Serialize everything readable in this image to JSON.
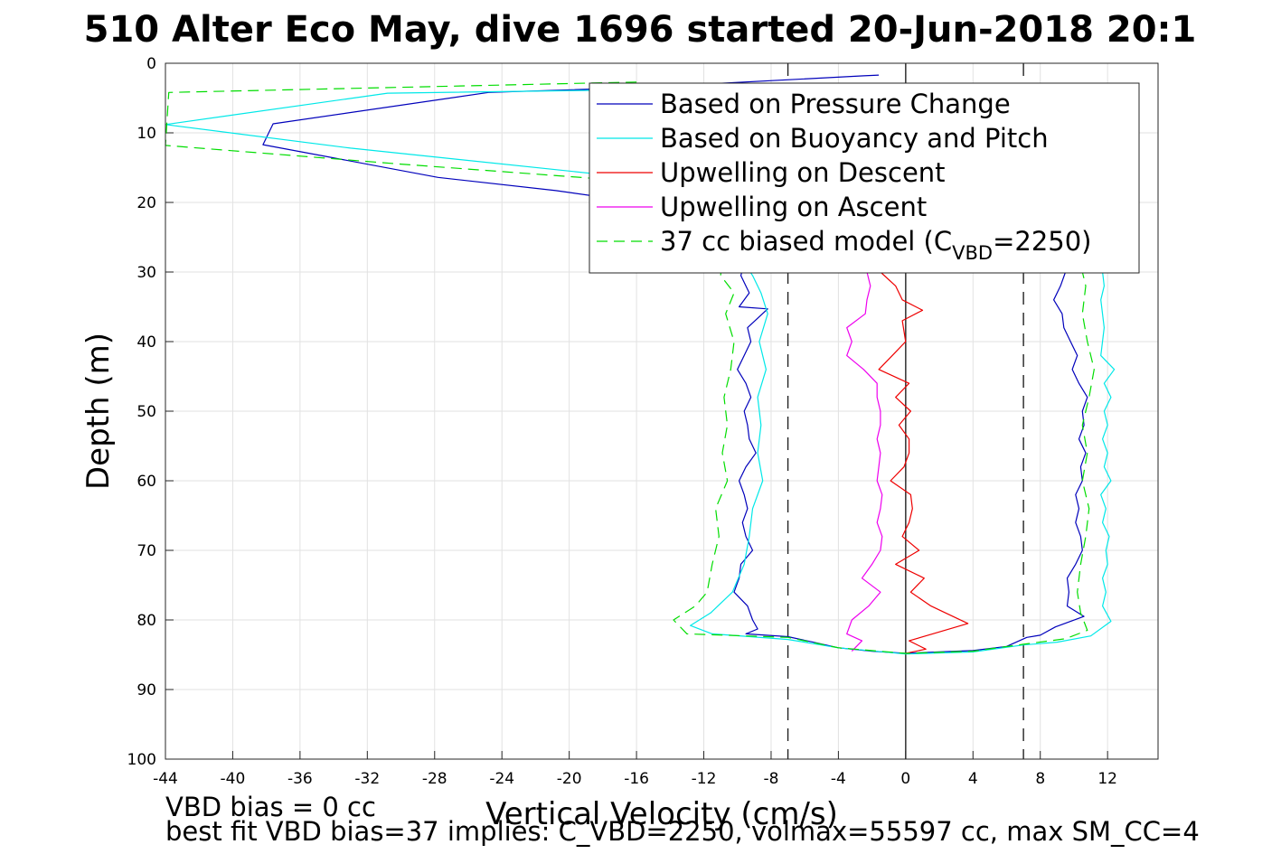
{
  "figure": {
    "title": "510 Alter Eco May, dive 1696 started 20-Jun-2018 20:1",
    "footer_line1": "VBD bias = 0 cc",
    "footer_line2": "best fit VBD bias=37 implies: C_VBD=2250, volmax=55597 cc, max SM_CC=4"
  },
  "chart_data": {
    "type": "line",
    "xlabel": "Vertical Velocity (cm/s)",
    "ylabel": "Depth (m)",
    "xlim": [
      -44,
      15
    ],
    "ylim": [
      0,
      100
    ],
    "y_reversed": true,
    "xticks": [
      -44,
      -40,
      -36,
      -32,
      -28,
      -24,
      -20,
      -16,
      -12,
      -8,
      -4,
      0,
      4,
      8,
      12
    ],
    "yticks": [
      0,
      10,
      20,
      30,
      40,
      50,
      60,
      70,
      80,
      90,
      100
    ],
    "grid": true,
    "legend_position": "top-right",
    "legend": [
      {
        "label": "Based on Pressure Change",
        "color": "#0000bb",
        "dash": false
      },
      {
        "label": "Based on Buoyancy and Pitch",
        "color": "#00e8e8",
        "dash": false
      },
      {
        "label": "Upwelling on Descent",
        "color": "#ee0000",
        "dash": false
      },
      {
        "label": "Upwelling on Ascent",
        "color": "#ee00ee",
        "dash": false
      },
      {
        "label": "37 cc biased model (C",
        "sub": "VBD",
        "suffix": "=2250)",
        "color": "#00dd00",
        "dash": true
      }
    ],
    "reference_lines": [
      {
        "x": 0,
        "style": "solid"
      },
      {
        "x": -7,
        "style": "dashed"
      },
      {
        "x": 7,
        "style": "dashed"
      }
    ],
    "series": [
      {
        "legend_index": 0,
        "color": "#0000bb",
        "dash": false,
        "points": [
          [
            -1.6,
            1.7
          ],
          [
            -2.5,
            1.8
          ],
          [
            -16,
            3.5
          ],
          [
            -24.8,
            4.2
          ],
          [
            -37.6,
            8.7
          ],
          [
            -38.2,
            11.7
          ],
          [
            -27.8,
            16.4
          ],
          [
            -20.8,
            18.3
          ],
          [
            -10,
            22
          ],
          [
            -9.5,
            28
          ],
          [
            -9.8,
            30.5
          ],
          [
            -9.3,
            33
          ],
          [
            -9.9,
            35
          ],
          [
            -8.2,
            35.3
          ],
          [
            -9.4,
            38
          ],
          [
            -9.2,
            40
          ],
          [
            -9.6,
            42
          ],
          [
            -10,
            44
          ],
          [
            -9.5,
            46
          ],
          [
            -9.2,
            48
          ],
          [
            -9.6,
            50
          ],
          [
            -9.4,
            52
          ],
          [
            -9.3,
            54
          ],
          [
            -8.9,
            56
          ],
          [
            -9.5,
            58
          ],
          [
            -9.9,
            60
          ],
          [
            -9.6,
            62
          ],
          [
            -9.4,
            64
          ],
          [
            -9.7,
            66
          ],
          [
            -9.5,
            68
          ],
          [
            -9.1,
            70
          ],
          [
            -9.8,
            72
          ],
          [
            -9.9,
            74
          ],
          [
            -10.2,
            76
          ],
          [
            -9.4,
            78
          ],
          [
            -9.1,
            80
          ],
          [
            -8.8,
            81.3
          ],
          [
            -9.5,
            82
          ],
          [
            -7,
            82.4
          ],
          [
            -5.5,
            83.2
          ],
          [
            -4,
            84
          ],
          [
            -2,
            84.5
          ],
          [
            0,
            84.8
          ],
          [
            2,
            84.6
          ],
          [
            4,
            84.4
          ],
          [
            6,
            83.8
          ],
          [
            7.2,
            82.5
          ],
          [
            8,
            82.2
          ],
          [
            8.9,
            81
          ],
          [
            10.6,
            79.5
          ],
          [
            9.6,
            78
          ],
          [
            9.7,
            76
          ],
          [
            9.6,
            74
          ],
          [
            10.1,
            72
          ],
          [
            10.5,
            70
          ],
          [
            10.4,
            68
          ],
          [
            10.1,
            66
          ],
          [
            10.3,
            64
          ],
          [
            10.1,
            62
          ],
          [
            10.5,
            60
          ],
          [
            10.4,
            58
          ],
          [
            10.7,
            56
          ],
          [
            10.3,
            54
          ],
          [
            10.6,
            52
          ],
          [
            10.5,
            50
          ],
          [
            10.8,
            48
          ],
          [
            10.3,
            46
          ],
          [
            9.9,
            44
          ],
          [
            10.2,
            42
          ],
          [
            9.8,
            40
          ],
          [
            9.4,
            38
          ],
          [
            9.3,
            36
          ],
          [
            8.8,
            34
          ],
          [
            9.2,
            32
          ],
          [
            9.5,
            30
          ]
        ]
      },
      {
        "legend_index": 1,
        "color": "#00e8e8",
        "dash": false,
        "points": [
          [
            -16,
            3.8
          ],
          [
            -30.8,
            4.3
          ],
          [
            -44,
            8.8
          ],
          [
            -33,
            12.2
          ],
          [
            -18,
            16
          ],
          [
            -10.5,
            20
          ],
          [
            -9.8,
            28
          ],
          [
            -9.1,
            30.5
          ],
          [
            -8.6,
            33
          ],
          [
            -8.2,
            36
          ],
          [
            -8.7,
            40
          ],
          [
            -8.3,
            44
          ],
          [
            -8.8,
            48
          ],
          [
            -8.6,
            52
          ],
          [
            -8.8,
            56
          ],
          [
            -8.5,
            60
          ],
          [
            -9.1,
            64
          ],
          [
            -9.3,
            68
          ],
          [
            -9.6,
            72
          ],
          [
            -10.3,
            76
          ],
          [
            -11.6,
            79
          ],
          [
            -12.8,
            80.8
          ],
          [
            -11.5,
            82
          ],
          [
            -7,
            82.8
          ],
          [
            -4,
            84
          ],
          [
            0,
            84.9
          ],
          [
            4,
            84.6
          ],
          [
            7,
            83.6
          ],
          [
            9,
            83.2
          ],
          [
            11,
            82.3
          ],
          [
            12.2,
            80.2
          ],
          [
            11.7,
            78
          ],
          [
            11.9,
            76
          ],
          [
            11.7,
            74
          ],
          [
            12,
            72
          ],
          [
            11.9,
            70
          ],
          [
            12.1,
            68
          ],
          [
            11.7,
            66
          ],
          [
            11.9,
            64
          ],
          [
            11.6,
            62
          ],
          [
            12.2,
            60
          ],
          [
            11.8,
            58
          ],
          [
            12,
            56
          ],
          [
            11.7,
            54
          ],
          [
            12,
            52
          ],
          [
            11.8,
            50
          ],
          [
            12.2,
            48
          ],
          [
            11.8,
            46
          ],
          [
            12.4,
            44
          ],
          [
            11.6,
            42
          ],
          [
            11.8,
            38
          ],
          [
            11.6,
            34
          ],
          [
            11.8,
            32
          ],
          [
            11.7,
            30
          ]
        ]
      },
      {
        "legend_index": 2,
        "color": "#ee0000",
        "dash": false,
        "points": [
          [
            -1.5,
            30
          ],
          [
            -0.6,
            32
          ],
          [
            -0.2,
            34
          ],
          [
            1,
            35.5
          ],
          [
            -0.2,
            37
          ],
          [
            0,
            40
          ],
          [
            -0.8,
            42
          ],
          [
            -1.6,
            44
          ],
          [
            0.2,
            46
          ],
          [
            -0.6,
            48
          ],
          [
            0.3,
            50
          ],
          [
            -0.4,
            52
          ],
          [
            0.2,
            54
          ],
          [
            0.2,
            56
          ],
          [
            -0.1,
            58
          ],
          [
            -0.9,
            60
          ],
          [
            0.3,
            62
          ],
          [
            0.4,
            64
          ],
          [
            0.2,
            66
          ],
          [
            -0.2,
            68
          ],
          [
            0.8,
            70
          ],
          [
            -0.6,
            72
          ],
          [
            1.1,
            74
          ],
          [
            0.3,
            76
          ],
          [
            1.5,
            78
          ],
          [
            2.8,
            79.5
          ],
          [
            3.7,
            80.5
          ],
          [
            1.6,
            82
          ],
          [
            0.2,
            83
          ],
          [
            1.2,
            84.2
          ],
          [
            0,
            84.8
          ]
        ]
      },
      {
        "legend_index": 3,
        "color": "#ee00ee",
        "dash": false,
        "points": [
          [
            -3.2,
            84.5
          ],
          [
            -2.6,
            83
          ],
          [
            -3.5,
            82
          ],
          [
            -3.2,
            80
          ],
          [
            -2.2,
            78
          ],
          [
            -1.5,
            76
          ],
          [
            -2.6,
            74
          ],
          [
            -2,
            72
          ],
          [
            -1.5,
            70
          ],
          [
            -1.4,
            68
          ],
          [
            -1.7,
            66
          ],
          [
            -1.5,
            64
          ],
          [
            -1.4,
            62
          ],
          [
            -1.7,
            60
          ],
          [
            -1.6,
            58
          ],
          [
            -1.5,
            56
          ],
          [
            -1.7,
            54
          ],
          [
            -1.5,
            52
          ],
          [
            -1.5,
            50
          ],
          [
            -1.7,
            48
          ],
          [
            -1.7,
            46
          ],
          [
            -2.5,
            44
          ],
          [
            -3.5,
            42
          ],
          [
            -3.2,
            40
          ],
          [
            -3.5,
            38
          ],
          [
            -2.4,
            36
          ],
          [
            -2.3,
            34
          ],
          [
            -2.1,
            32
          ],
          [
            -2.3,
            30
          ]
        ]
      },
      {
        "legend_index": 4,
        "color": "#00dd00",
        "dash": true,
        "points": [
          [
            -16,
            2.7
          ],
          [
            -43.8,
            4.2
          ],
          [
            -44,
            11.8
          ],
          [
            -30,
            14.5
          ],
          [
            -16,
            17
          ],
          [
            -10.5,
            20
          ],
          [
            -11,
            30.5
          ],
          [
            -10.2,
            33
          ],
          [
            -10.7,
            36
          ],
          [
            -10.2,
            40
          ],
          [
            -10.4,
            44
          ],
          [
            -10.8,
            48
          ],
          [
            -10.6,
            52
          ],
          [
            -10.9,
            56
          ],
          [
            -10.6,
            60
          ],
          [
            -11.3,
            64
          ],
          [
            -11.1,
            68
          ],
          [
            -11.5,
            72
          ],
          [
            -11.8,
            76
          ],
          [
            -12.5,
            78
          ],
          [
            -13.8,
            80
          ],
          [
            -13,
            82
          ],
          [
            -7,
            82.5
          ],
          [
            -4,
            84
          ],
          [
            0,
            84.8
          ],
          [
            4,
            84.5
          ],
          [
            7,
            83.5
          ],
          [
            9.5,
            82.7
          ],
          [
            10.8,
            81.5
          ],
          [
            10.4,
            79
          ],
          [
            10.2,
            76
          ],
          [
            10.4,
            72
          ],
          [
            10.7,
            68
          ],
          [
            10.9,
            64
          ],
          [
            10.5,
            60
          ],
          [
            10.8,
            56
          ],
          [
            10.5,
            52
          ],
          [
            10.9,
            48
          ],
          [
            11.2,
            44
          ],
          [
            10.8,
            40
          ],
          [
            10.5,
            36
          ],
          [
            10.7,
            32
          ],
          [
            10.5,
            30
          ]
        ]
      }
    ]
  }
}
